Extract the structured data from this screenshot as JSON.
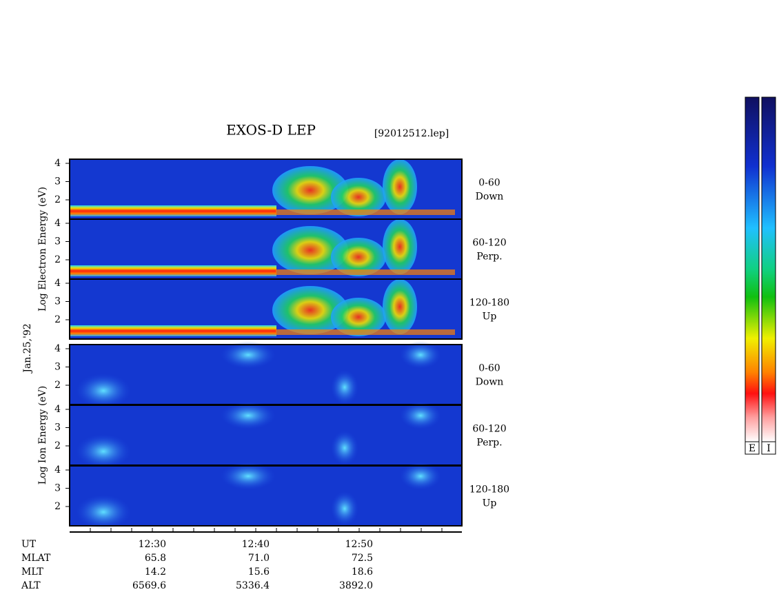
{
  "header": {
    "title": "EXOS-D LEP",
    "file": "[92012512.lep]"
  },
  "date": "Jan.25,'92",
  "panel_ticks": [
    "4",
    "3",
    "2"
  ],
  "groups": [
    {
      "axis_label": "Log Electron Energy (eV)",
      "panels": [
        {
          "angle": "0-60",
          "direction": "Down"
        },
        {
          "angle": "60-120",
          "direction": "Perp."
        },
        {
          "angle": "120-180",
          "direction": "Up"
        }
      ]
    },
    {
      "axis_label": "Log Ion Energy (eV)",
      "panels": [
        {
          "angle": "0-60",
          "direction": "Down"
        },
        {
          "angle": "60-120",
          "direction": "Perp."
        },
        {
          "angle": "120-180",
          "direction": "Up"
        }
      ]
    }
  ],
  "time_axis": {
    "rows": [
      {
        "label": "UT",
        "values": [
          "12:30",
          "12:40",
          "12:50"
        ]
      },
      {
        "label": "MLAT",
        "values": [
          "65.8",
          "71.0",
          "72.5"
        ]
      },
      {
        "label": "MLT",
        "values": [
          "14.2",
          "15.6",
          "18.6"
        ]
      },
      {
        "label": "ALT",
        "values": [
          "6569.6",
          "5336.4",
          "3892.0"
        ]
      }
    ]
  },
  "colorbars": [
    "E",
    "I"
  ]
}
